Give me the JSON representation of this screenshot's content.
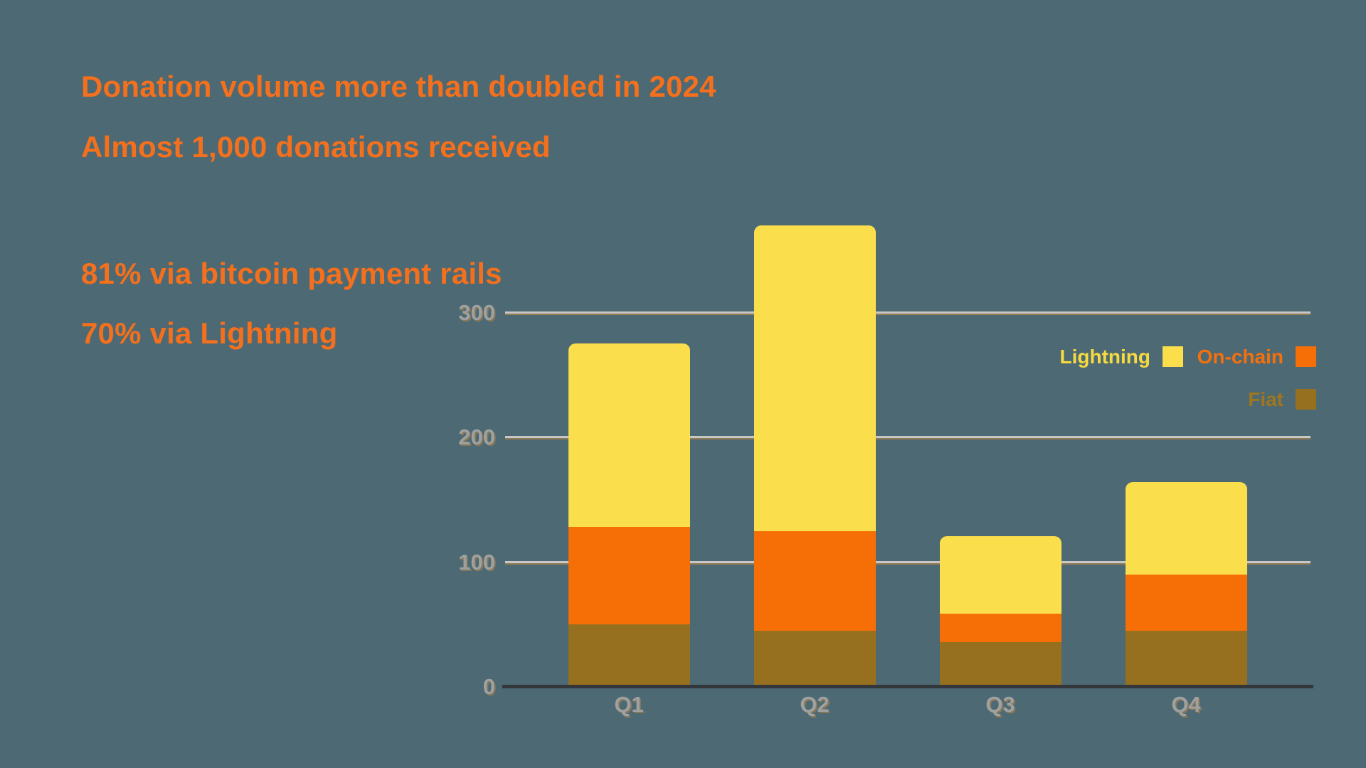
{
  "page": {
    "background_color": "#4D6973"
  },
  "headline": {
    "color": "#F4701D",
    "line1": "Donation volume more than doubled in 2024",
    "line2": "Almost 1,000 donations received",
    "line3": "81% via bitcoin payment rails",
    "line4": "70% via Lightning"
  },
  "chart_data": {
    "type": "bar",
    "stacked": true,
    "title": "",
    "xlabel": "",
    "ylabel": "",
    "categories": [
      "Q1",
      "Q2",
      "Q3",
      "Q4"
    ],
    "series": [
      {
        "name": "Fiat",
        "color": "#97701F",
        "values": [
          50,
          45,
          36,
          45
        ]
      },
      {
        "name": "On-chain",
        "color": "#F56F06",
        "values": [
          78,
          80,
          23,
          45
        ]
      },
      {
        "name": "Lightning",
        "color": "#FADE4B",
        "values": [
          147,
          245,
          62,
          74
        ]
      }
    ],
    "stack_totals": [
      275,
      370,
      121,
      164
    ],
    "yticks": [
      0,
      100,
      200,
      300
    ],
    "ylim": [
      0,
      380
    ],
    "grid": true,
    "legend_position": "right-inside",
    "tick_label_color": "#9FA1A1",
    "gridline_color": "#C7C7C7",
    "axis_line_color": "#33363A"
  },
  "legend": {
    "items": [
      {
        "label": "Lightning",
        "text_color": "#F6DA40",
        "swatch_color": "#FADE4B"
      },
      {
        "label": "On-chain",
        "text_color": "#F4700D",
        "swatch_color": "#F56F06"
      },
      {
        "label": "Fiat",
        "text_color": "#9E761F",
        "swatch_color": "#97701F"
      }
    ]
  }
}
